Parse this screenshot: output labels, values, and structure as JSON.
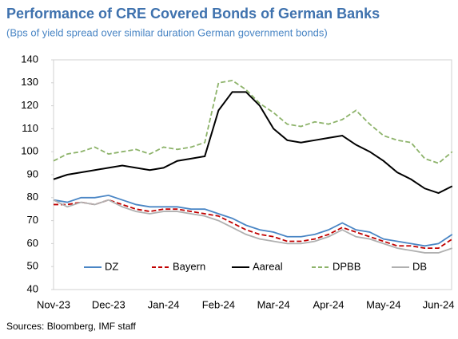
{
  "chart_data": {
    "type": "line",
    "title": "Performance of CRE Covered Bonds of German Banks",
    "subtitle": "(Bps of yield spread over similar duration German government bonds)",
    "source": "Sources: Bloomberg, IMF staff",
    "categories": [
      "Nov-23",
      null,
      null,
      null,
      "Dec-23",
      null,
      null,
      null,
      "Jan-24",
      null,
      null,
      null,
      "Feb-24",
      null,
      null,
      null,
      "Mar-24",
      null,
      null,
      null,
      "Apr-24",
      null,
      null,
      null,
      "May-24",
      null,
      null,
      null,
      "Jun-24",
      null
    ],
    "ylim": [
      40,
      140
    ],
    "yticks": [
      40,
      50,
      60,
      70,
      80,
      90,
      100,
      110,
      120,
      130,
      140
    ],
    "legend": "bottom",
    "series": [
      {
        "name": "DZ",
        "color": "#4a86c5",
        "dashed": false,
        "values": [
          79,
          78,
          80,
          80,
          81,
          79,
          77,
          76,
          76,
          76,
          75,
          75,
          73,
          71,
          68,
          66,
          65,
          63,
          63,
          64,
          66,
          69,
          66,
          65,
          62,
          61,
          60,
          59,
          60,
          64
        ]
      },
      {
        "name": "Bayern",
        "color": "#c00000",
        "dashed": true,
        "values": [
          77,
          77,
          78,
          77,
          79,
          77,
          75,
          74,
          75,
          75,
          74,
          73,
          72,
          69,
          66,
          64,
          63,
          61,
          61,
          62,
          64,
          67,
          65,
          63,
          61,
          59,
          59,
          58,
          58,
          62
        ]
      },
      {
        "name": "Aareal",
        "color": "#000000",
        "dashed": false,
        "values": [
          88,
          90,
          91,
          92,
          93,
          94,
          93,
          92,
          93,
          96,
          97,
          98,
          118,
          126,
          126,
          120,
          110,
          105,
          104,
          105,
          106,
          107,
          103,
          100,
          96,
          91,
          88,
          84,
          82,
          85
        ]
      },
      {
        "name": "DPBB",
        "color": "#8db36a",
        "dashed": true,
        "values": [
          96,
          99,
          100,
          102,
          99,
          100,
          101,
          99,
          102,
          101,
          102,
          104,
          130,
          131,
          127,
          121,
          117,
          112,
          111,
          113,
          112,
          114,
          118,
          112,
          107,
          105,
          104,
          97,
          95,
          100
        ]
      },
      {
        "name": "DB",
        "color": "#b0b0b0",
        "dashed": false,
        "values": [
          79,
          76,
          78,
          77,
          79,
          76,
          74,
          73,
          74,
          74,
          73,
          72,
          70,
          67,
          64,
          62,
          61,
          60,
          60,
          61,
          63,
          66,
          63,
          62,
          60,
          58,
          57,
          56,
          56,
          58
        ]
      }
    ]
  }
}
